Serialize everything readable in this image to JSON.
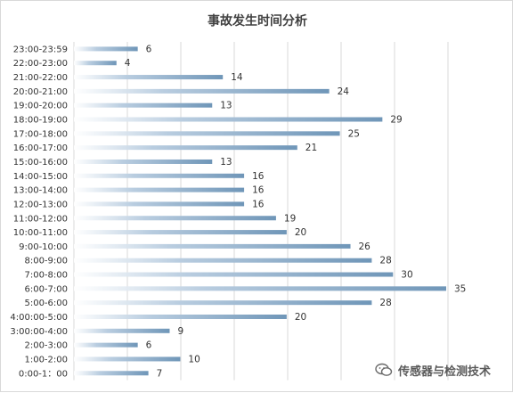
{
  "chart_data": {
    "type": "bar",
    "orientation": "horizontal",
    "title": "事故发生时间分析",
    "categories": [
      "23:00-23:59",
      "22:00-23:00",
      "21:00-22:00",
      "20:00-21:00",
      "19:00-20:00",
      "18:00-19:00",
      "17:00-18:00",
      "16:00-17:00",
      "15:00-16:00",
      "14:00-15:00",
      "13:00-14:00",
      "12:00-13:00",
      "11:00-12:00",
      "10:00-11:00",
      "9:00-10:00",
      "8:00-9:00",
      "7:00-8:00",
      "6:00-7:00",
      "5:00-6:00",
      "4:00:00-5:00",
      "3:00:00-4:00",
      "2:00-3:00",
      "1:00-2:00",
      "0:00-1：00"
    ],
    "values": [
      6,
      4,
      14,
      24,
      13,
      29,
      25,
      21,
      13,
      16,
      16,
      16,
      19,
      20,
      26,
      28,
      30,
      35,
      28,
      20,
      9,
      6,
      10,
      7
    ],
    "xlim": [
      0,
      35
    ],
    "grid": true,
    "data_labels": true,
    "bar_color": "#6f96b8"
  },
  "watermark": {
    "text": "传感器与检测技术",
    "icon": "wechat-logo-icon"
  }
}
